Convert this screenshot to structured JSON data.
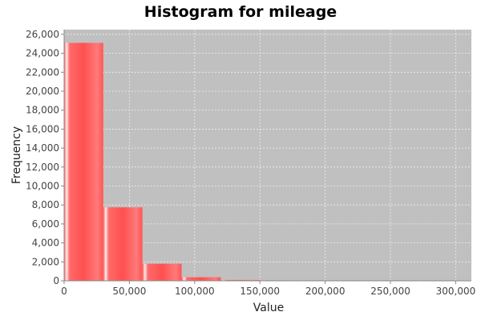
{
  "chart_data": {
    "type": "bar",
    "title": "Histogram for mileage",
    "xlabel": "Value",
    "ylabel": "Frequency",
    "xlim": [
      0,
      312000
    ],
    "ylim": [
      0,
      26500
    ],
    "x_ticks": [
      0,
      50000,
      100000,
      150000,
      200000,
      250000,
      300000
    ],
    "y_ticks": [
      0,
      2000,
      4000,
      6000,
      8000,
      10000,
      12000,
      14000,
      16000,
      18000,
      20000,
      22000,
      24000,
      26000
    ],
    "grid": true,
    "bins": [
      {
        "start": 0,
        "end": 30000,
        "value": 25100
      },
      {
        "start": 30000,
        "end": 60000,
        "value": 7750
      },
      {
        "start": 60000,
        "end": 90000,
        "value": 1800
      },
      {
        "start": 90000,
        "end": 120000,
        "value": 380
      },
      {
        "start": 120000,
        "end": 150000,
        "value": 90
      },
      {
        "start": 150000,
        "end": 180000,
        "value": 20
      },
      {
        "start": 180000,
        "end": 210000,
        "value": 6
      },
      {
        "start": 210000,
        "end": 240000,
        "value": 3
      },
      {
        "start": 240000,
        "end": 270000,
        "value": 2
      },
      {
        "start": 270000,
        "end": 300000,
        "value": 1
      }
    ],
    "colors": {
      "bar": "#ff5555",
      "bar_light": "#ffb0b0",
      "plot_bg": "#c0c0c0",
      "grid": "#f0f0f0"
    }
  }
}
